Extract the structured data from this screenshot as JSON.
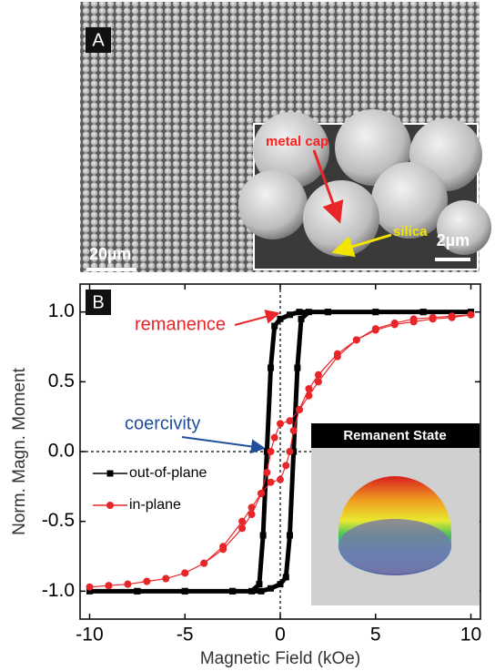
{
  "panel_a": {
    "panel_label": "A",
    "inset_labels": {
      "cap": "metal cap",
      "core": "silica",
      "inset_scale": "2µm"
    },
    "scale_bar": "20µm"
  },
  "chart_data": {
    "type": "line",
    "panel_label": "B",
    "x_label": "Magnetic Field (kOe)",
    "y_label": "Norm. Magn. Moment",
    "xlim": [
      -10.5,
      10.5
    ],
    "ylim": [
      -1.2,
      1.2
    ],
    "xticks": [
      -10,
      -5,
      0,
      5,
      10
    ],
    "yticks": [
      {
        "value": -1.0,
        "label": "-1.0"
      },
      {
        "value": -0.5,
        "label": "-0.5"
      },
      {
        "value": 0.0,
        "label": "0.0"
      },
      {
        "value": 0.5,
        "label": "0.5"
      },
      {
        "value": 1.0,
        "label": "1.0"
      }
    ],
    "legend": "left",
    "series": [
      {
        "name": "out-of-plane",
        "color": "#000000",
        "marker": "square",
        "x": [
          10,
          7.5,
          5,
          2.5,
          1.0,
          0.5,
          0,
          -0.3,
          -0.5,
          -0.7,
          -0.9,
          -1.1,
          -1.5,
          -2.5,
          -5,
          -7.5,
          -10,
          -7.5,
          -5,
          -2.5,
          -1,
          -0.5,
          0,
          0.3,
          0.5,
          0.7,
          0.9,
          1.1,
          1.5,
          2.5,
          5,
          7.5,
          10
        ],
        "values": [
          1,
          1,
          1,
          1,
          1,
          0.98,
          0.95,
          0.9,
          0.6,
          0,
          -0.6,
          -0.95,
          -1,
          -1,
          -1,
          -1,
          -1,
          -1,
          -1,
          -1,
          -1,
          -0.98,
          -0.95,
          -0.9,
          -0.6,
          0,
          0.6,
          0.95,
          1,
          1,
          1,
          1,
          1
        ]
      },
      {
        "name": "in-plane",
        "color": "#e8262a",
        "marker": "circle",
        "x": [
          10,
          9,
          8,
          7,
          6,
          5,
          4,
          3,
          2,
          1.5,
          1,
          0.5,
          0,
          -0.3,
          -0.5,
          -0.7,
          -1,
          -1.5,
          -2,
          -3,
          -4,
          -5,
          -6,
          -7,
          -8,
          -9,
          -10,
          -9,
          -8,
          -7,
          -6,
          -5,
          -4,
          -3,
          -2,
          -1.5,
          -1,
          -0.5,
          0,
          0.3,
          0.5,
          0.7,
          1,
          1.5,
          2,
          3,
          4,
          5,
          6,
          7,
          8,
          9,
          10
        ],
        "values": [
          0.98,
          0.97,
          0.96,
          0.95,
          0.92,
          0.88,
          0.8,
          0.68,
          0.5,
          0.4,
          0.3,
          0.22,
          0.2,
          0.1,
          0,
          -0.15,
          -0.3,
          -0.45,
          -0.55,
          -0.7,
          -0.8,
          -0.87,
          -0.91,
          -0.93,
          -0.95,
          -0.96,
          -0.97,
          -0.96,
          -0.95,
          -0.93,
          -0.91,
          -0.87,
          -0.8,
          -0.68,
          -0.5,
          -0.4,
          -0.3,
          -0.22,
          -0.2,
          -0.1,
          0,
          0.15,
          0.3,
          0.45,
          0.55,
          0.7,
          0.8,
          0.87,
          0.91,
          0.93,
          0.95,
          0.96,
          0.98
        ]
      }
    ],
    "annotations": [
      {
        "text": "remanence",
        "color": "#e8262a"
      },
      {
        "text": "coercivity",
        "color": "#1f4e9c"
      }
    ],
    "inset_title": "Remanent State"
  }
}
